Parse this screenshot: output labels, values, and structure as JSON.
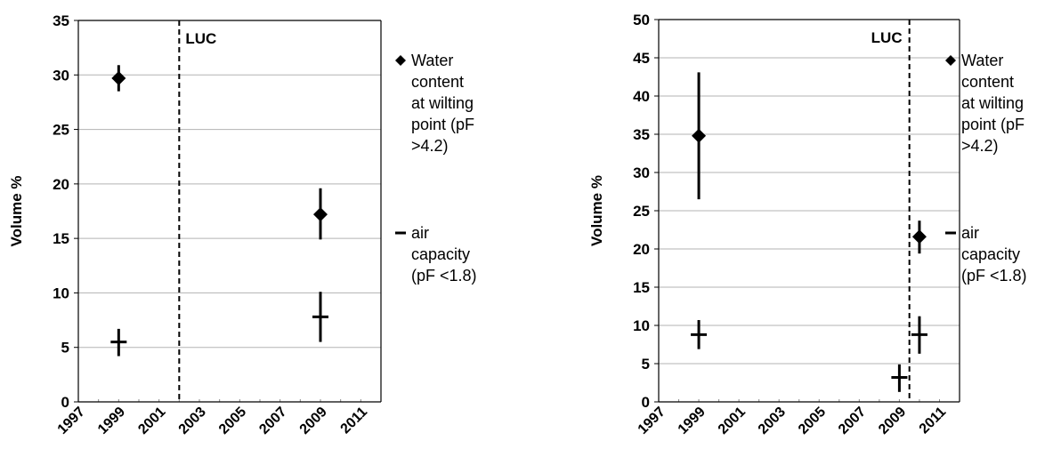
{
  "chart_data": [
    {
      "type": "scatter",
      "title": "",
      "xlabel": "",
      "ylabel": "Volume %",
      "xlim": [
        1997,
        2012
      ],
      "ylim": [
        0,
        35
      ],
      "x_ticks": [
        "1997",
        "1999",
        "2001",
        "2003",
        "2005",
        "2007",
        "2009",
        "2011"
      ],
      "y_ticks": [
        "0",
        "5",
        "10",
        "15",
        "20",
        "25",
        "30",
        "35"
      ],
      "grid": "horizontal",
      "legend": "right",
      "annotation": {
        "text": "LUC",
        "x": 2002
      },
      "series": [
        {
          "name": "Water content at wilting point (pF >4.2)",
          "marker": "diamond",
          "points": [
            {
              "x": 1999,
              "y": 29.7,
              "err_low": 28.5,
              "err_high": 30.9
            },
            {
              "x": 2009,
              "y": 17.2,
              "err_low": 14.9,
              "err_high": 19.6
            }
          ]
        },
        {
          "name": "air capacity (pF <1.8)",
          "marker": "dash",
          "points": [
            {
              "x": 1999,
              "y": 5.5,
              "err_low": 4.2,
              "err_high": 6.7
            },
            {
              "x": 2009,
              "y": 7.8,
              "err_low": 5.5,
              "err_high": 10.1
            }
          ]
        }
      ]
    },
    {
      "type": "scatter",
      "title": "",
      "xlabel": "",
      "ylabel": "Volume %",
      "xlim": [
        1997,
        2012
      ],
      "ylim": [
        0,
        50
      ],
      "x_ticks": [
        "1997",
        "1999",
        "2001",
        "2003",
        "2005",
        "2007",
        "2009",
        "2011"
      ],
      "y_ticks": [
        "0",
        "5",
        "10",
        "15",
        "20",
        "25",
        "30",
        "35",
        "40",
        "45",
        "50"
      ],
      "grid": "horizontal",
      "legend": "right",
      "annotation": {
        "text": "LUC",
        "x": 2009.5
      },
      "series": [
        {
          "name": "Water content at wilting point (pF >4.2)",
          "marker": "diamond",
          "points": [
            {
              "x": 1999,
              "y": 34.8,
              "err_low": 26.5,
              "err_high": 43.1
            },
            {
              "x": 2010,
              "y": 21.6,
              "err_low": 19.4,
              "err_high": 23.7
            }
          ]
        },
        {
          "name": "air capacity (pF <1.8)",
          "marker": "dash",
          "points": [
            {
              "x": 1999,
              "y": 8.8,
              "err_low": 6.9,
              "err_high": 10.7
            },
            {
              "x": 2009,
              "y": 3.2,
              "err_low": 1.3,
              "err_high": 4.9
            },
            {
              "x": 2010,
              "y": 8.8,
              "err_low": 6.3,
              "err_high": 11.2
            }
          ]
        }
      ]
    }
  ],
  "legend_text": {
    "wilting": [
      "Water",
      "content",
      "at wilting",
      "point (pF",
      ">4.2)"
    ],
    "air": [
      "air",
      "capacity",
      "(pF <1.8)"
    ]
  }
}
